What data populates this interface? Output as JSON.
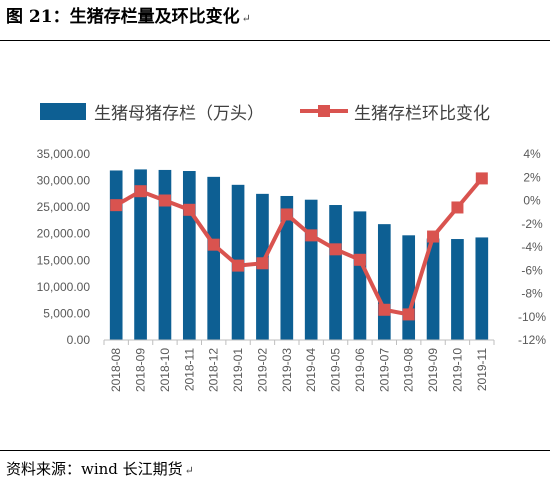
{
  "header": {
    "title": "图 21：生猪存栏量及环比变化",
    "mark": "↵"
  },
  "footer": {
    "source": "资料来源：wind   长江期货",
    "mark": "↵"
  },
  "chart_data": {
    "type": "bar+line",
    "categories": [
      "2018-08",
      "2018-09",
      "2018-10",
      "2018-11",
      "2018-12",
      "2019-01",
      "2019-02",
      "2019-03",
      "2019-04",
      "2019-05",
      "2019-06",
      "2019-07",
      "2019-08",
      "2019-09",
      "2019-10",
      "2019-11"
    ],
    "series": [
      {
        "name": "生猪母猪存栏（万头）",
        "type": "bar",
        "axis": "left",
        "color": "#0d5f93",
        "values": [
          31900,
          32100,
          32000,
          31800,
          30700,
          29200,
          27500,
          27100,
          26400,
          25400,
          24200,
          21800,
          19700,
          19100,
          19000,
          19300
        ]
      },
      {
        "name": "生猪存栏环比变化",
        "type": "line",
        "axis": "right",
        "color": "#d9534f",
        "values": [
          -0.4,
          0.8,
          0.0,
          -0.8,
          -3.8,
          -5.6,
          -5.4,
          -1.2,
          -3.0,
          -4.2,
          -5.1,
          -9.4,
          -9.8,
          -3.1,
          -0.6,
          1.9
        ]
      }
    ],
    "y_left": {
      "ticks": [
        "35,000.00",
        "30,000.00",
        "25,000.00",
        "20,000.00",
        "15,000.00",
        "10,000.00",
        "5,000.00",
        "0.00"
      ],
      "ylim": [
        0,
        35000
      ]
    },
    "y_right": {
      "ticks": [
        "4%",
        "2%",
        "0%",
        "-2%",
        "-4%",
        "-6%",
        "-8%",
        "-10%",
        "-12%"
      ],
      "ylim": [
        -12,
        4
      ]
    },
    "legend": "top",
    "grid": false
  }
}
